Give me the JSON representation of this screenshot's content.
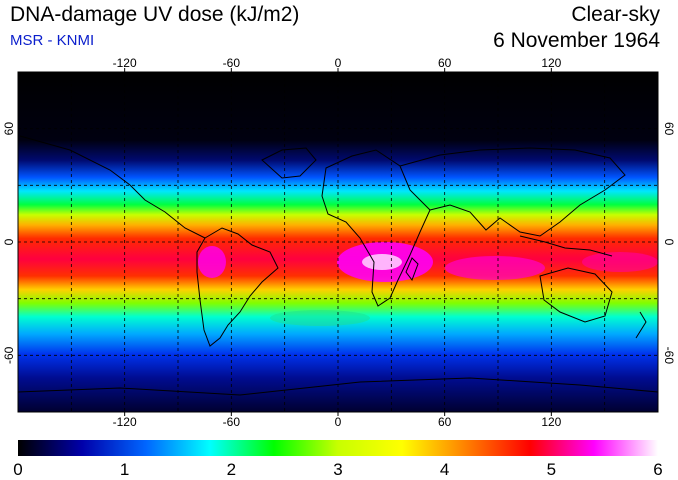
{
  "header": {
    "title": "DNA-damage UV dose (kJ/m2)",
    "source": "MSR - KNMI",
    "condition": "Clear-sky",
    "date": "6 November 1964"
  },
  "map": {
    "lon_ticks": [
      "-120",
      "-60",
      "0",
      "60",
      "120"
    ],
    "lat_ticks": [
      "60",
      "0",
      "-60"
    ],
    "lon_range": [
      -180,
      180
    ],
    "lat_range": [
      -90,
      90
    ],
    "grid_lons": [
      -150,
      -120,
      -90,
      -60,
      -30,
      0,
      30,
      60,
      90,
      120,
      150
    ],
    "grid_lats": [
      -60,
      -30,
      0,
      30,
      60
    ]
  },
  "colorbar": {
    "min": 0,
    "max": 6,
    "tick_labels": [
      "0",
      "1",
      "2",
      "3",
      "4",
      "5",
      "6"
    ],
    "colors": [
      "#000000",
      "#0000aa",
      "#0066ff",
      "#00ffff",
      "#00ff00",
      "#c8ff00",
      "#ffff00",
      "#ff8000",
      "#ff0000",
      "#ff00ff",
      "#ffffff"
    ]
  }
}
